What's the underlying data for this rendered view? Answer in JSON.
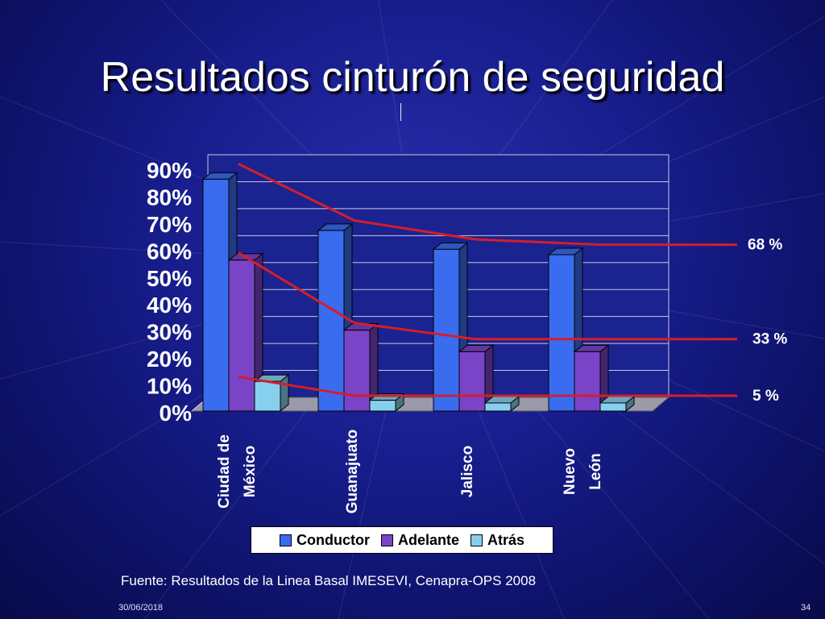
{
  "slide": {
    "title": "Resultados cinturón de seguridad",
    "source": "Fuente: Resultados de la Linea Basal IMESEVI, Cenapra-OPS 2008",
    "date": "30/06/2018",
    "page": "34"
  },
  "colors": {
    "conductor": "#3a6cf0",
    "adelante": "#7a44c8",
    "atras": "#86d0ee",
    "trend": "#d41e2a",
    "axis_text": "#ffffff"
  },
  "chart_data": {
    "type": "bar",
    "categories": [
      [
        "Ciudad de",
        "México"
      ],
      [
        "Guanajuato"
      ],
      [
        "Jalisco"
      ],
      [
        "Nuevo",
        "León"
      ]
    ],
    "series": [
      {
        "name": "Conductor",
        "values": [
          86,
          67,
          60,
          58
        ]
      },
      {
        "name": "Adelante",
        "values": [
          56,
          30,
          22,
          22
        ]
      },
      {
        "name": "Atrás",
        "values": [
          11,
          4,
          3,
          3
        ]
      }
    ],
    "ylim": [
      0,
      90
    ],
    "yticks": [
      "0%",
      "10%",
      "20%",
      "30%",
      "40%",
      "50%",
      "60%",
      "70%",
      "80%",
      "90%"
    ],
    "grid": true,
    "legend": "bottom",
    "trend_labels": [
      "68 %",
      "33 %",
      "5 %"
    ],
    "trend_lines": [
      {
        "label": "68 %",
        "points": [
          [
            0,
            89
          ],
          [
            1,
            68
          ],
          [
            2,
            61
          ],
          [
            3,
            59
          ],
          [
            4,
            59
          ]
        ]
      },
      {
        "label": "33 %",
        "points": [
          [
            0,
            56
          ],
          [
            1,
            30
          ],
          [
            2,
            24
          ],
          [
            3,
            24
          ],
          [
            4,
            24
          ]
        ]
      },
      {
        "label": "5 %",
        "points": [
          [
            0,
            10
          ],
          [
            1,
            3
          ],
          [
            2,
            3
          ],
          [
            3,
            3
          ],
          [
            4,
            3
          ]
        ]
      }
    ]
  }
}
